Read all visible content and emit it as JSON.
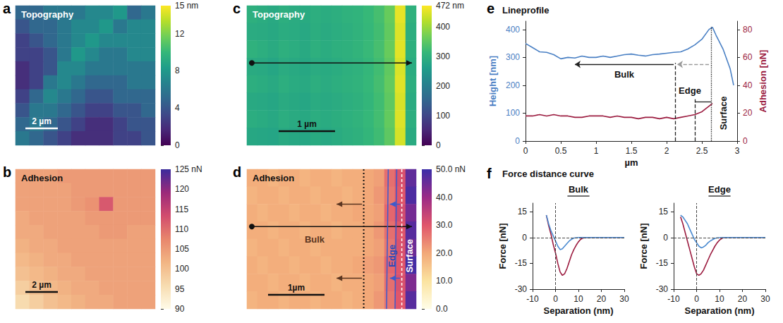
{
  "chart_data": [
    {
      "panel": "a",
      "type": "heatmap",
      "title": "Topography",
      "scale_bar": "2 µm",
      "tick_labels": false,
      "cells": [
        [
          5,
          5,
          6,
          6,
          6,
          7,
          7,
          8,
          5,
          6
        ],
        [
          4,
          5,
          5,
          6,
          7,
          7,
          8,
          6,
          7,
          7
        ],
        [
          3,
          4,
          5,
          6,
          7,
          8,
          7,
          7,
          7,
          7
        ],
        [
          3,
          3,
          4,
          6,
          8,
          7,
          6,
          6,
          7,
          7
        ],
        [
          2,
          3,
          4,
          7,
          7,
          6,
          6,
          6,
          6,
          6
        ],
        [
          2,
          3,
          6,
          7,
          6,
          5,
          5,
          5,
          6,
          6
        ],
        [
          3,
          5,
          7,
          6,
          5,
          4,
          4,
          5,
          5,
          5
        ],
        [
          4,
          6,
          6,
          5,
          4,
          3,
          3,
          4,
          4,
          5
        ],
        [
          5,
          6,
          5,
          4,
          3,
          2,
          2,
          3,
          4,
          4
        ],
        [
          6,
          5,
          4,
          3,
          2,
          2,
          2,
          3,
          3,
          4
        ]
      ],
      "colorbar": {
        "range": [
          0,
          15
        ],
        "ticks": [
          0,
          4,
          8,
          12,
          {
            "value": 15,
            "label": "15 nm"
          }
        ],
        "colors": [
          "#440154",
          "#482878",
          "#3e4989",
          "#31688e",
          "#26828e",
          "#1f9e89",
          "#35b779",
          "#6ece58",
          "#b5de2b",
          "#fde725"
        ]
      }
    },
    {
      "panel": "b",
      "type": "heatmap",
      "title": "Adhesion",
      "scale_bar": "2 µm",
      "tick_labels": false,
      "cells": [
        [
          104,
          104,
          104,
          105,
          105,
          105,
          105,
          105,
          105,
          105
        ],
        [
          104,
          104,
          104,
          104,
          105,
          105,
          105,
          105,
          105,
          105
        ],
        [
          104,
          104,
          104,
          104,
          105,
          106,
          112,
          105,
          105,
          105
        ],
        [
          103,
          104,
          104,
          104,
          104,
          105,
          105,
          105,
          105,
          105
        ],
        [
          103,
          103,
          104,
          104,
          104,
          104,
          105,
          105,
          104,
          104
        ],
        [
          102,
          103,
          103,
          104,
          104,
          104,
          104,
          104,
          104,
          104
        ],
        [
          101,
          102,
          103,
          103,
          104,
          104,
          104,
          104,
          104,
          104
        ],
        [
          100,
          101,
          102,
          103,
          103,
          104,
          104,
          104,
          104,
          104
        ],
        [
          98,
          100,
          101,
          102,
          103,
          103,
          104,
          104,
          104,
          104
        ],
        [
          96,
          98,
          100,
          101,
          102,
          103,
          103,
          104,
          104,
          104
        ]
      ],
      "colorbar": {
        "range": [
          90,
          125
        ],
        "ticks": [
          90,
          95,
          100,
          105,
          110,
          115,
          120,
          {
            "value": 125,
            "label": "125 nN"
          }
        ],
        "colors": [
          "#fffbe8",
          "#f7dcb0",
          "#f2b584",
          "#e8866c",
          "#d24c6e",
          "#9b2a7a",
          "#3b2c9c"
        ]
      }
    },
    {
      "panel": "c",
      "type": "heatmap",
      "title": "Topography",
      "scale_bar": "1 µm",
      "tick_labels": false,
      "cells": [
        [
          298,
          292,
          286,
          296,
          290,
          287,
          296,
          291,
          296,
          302,
          306,
          316,
          330,
          360,
          455,
          300
        ],
        [
          290,
          288,
          284,
          292,
          289,
          283,
          294,
          288,
          293,
          298,
          304,
          314,
          327,
          356,
          448,
          294
        ],
        [
          302,
          295,
          288,
          298,
          293,
          286,
          298,
          292,
          297,
          301,
          307,
          317,
          331,
          361,
          452,
          298
        ],
        [
          288,
          286,
          280,
          290,
          286,
          281,
          290,
          287,
          292,
          297,
          302,
          312,
          326,
          354,
          446,
          292
        ],
        [
          296,
          291,
          285,
          295,
          289,
          285,
          295,
          290,
          295,
          300,
          305,
          315,
          329,
          358,
          451,
          296
        ],
        [
          285,
          283,
          278,
          288,
          284,
          279,
          289,
          285,
          290,
          296,
          301,
          311,
          325,
          353,
          445,
          290
        ],
        [
          293,
          289,
          283,
          293,
          288,
          284,
          293,
          289,
          294,
          299,
          304,
          314,
          328,
          357,
          449,
          295
        ],
        [
          282,
          280,
          276,
          286,
          282,
          278,
          287,
          283,
          289,
          295,
          300,
          310,
          324,
          352,
          443,
          288
        ]
      ],
      "colorbar": {
        "range": [
          0,
          472
        ],
        "ticks": [
          0,
          100,
          200,
          300,
          400,
          {
            "value": 472,
            "label": "472 nm"
          }
        ],
        "colors": [
          "#440154",
          "#482878",
          "#3e4989",
          "#31688e",
          "#26828e",
          "#1f9e89",
          "#35b779",
          "#6ece58",
          "#b5de2b",
          "#fde725"
        ]
      }
    },
    {
      "panel": "d",
      "type": "heatmap",
      "title": "Adhesion",
      "scale_bar": "1µm",
      "tick_labels": false,
      "cells": [
        [
          19,
          19,
          18,
          19,
          19,
          18,
          19,
          19,
          18,
          19,
          19,
          20,
          21,
          27,
          31,
          46
        ],
        [
          18,
          19,
          19,
          18,
          19,
          19,
          18,
          19,
          19,
          18,
          19,
          20,
          22,
          26,
          30,
          48
        ],
        [
          19,
          18,
          19,
          19,
          18,
          19,
          19,
          18,
          19,
          19,
          20,
          20,
          21,
          28,
          32,
          44
        ],
        [
          19,
          19,
          18,
          19,
          19,
          18,
          19,
          19,
          18,
          19,
          19,
          20,
          22,
          27,
          30,
          47
        ],
        [
          18,
          19,
          19,
          18,
          19,
          19,
          18,
          19,
          19,
          19,
          19,
          20,
          21,
          26,
          31,
          45
        ],
        [
          19,
          18,
          19,
          19,
          18,
          19,
          19,
          18,
          19,
          19,
          20,
          21,
          22,
          28,
          30,
          49
        ],
        [
          19,
          19,
          18,
          19,
          19,
          18,
          19,
          19,
          18,
          19,
          19,
          20,
          21,
          27,
          31,
          43
        ],
        [
          18,
          19,
          19,
          18,
          19,
          19,
          18,
          19,
          19,
          18,
          19,
          20,
          22,
          26,
          30,
          47
        ]
      ],
      "colorbar": {
        "range": [
          0,
          50
        ],
        "ticks": [
          {
            "value": 0,
            "label": "0.0"
          },
          {
            "value": 10,
            "label": "10.0"
          },
          {
            "value": 20,
            "label": "20.0"
          },
          {
            "value": 30,
            "label": "30.0"
          },
          {
            "value": 40,
            "label": "40.0"
          },
          {
            "value": 50,
            "label": "50.0 nN"
          }
        ],
        "colors": [
          "#fffde8",
          "#fbe3a0",
          "#f2a878",
          "#e0566b",
          "#9a2a86",
          "#3a2da8"
        ]
      },
      "annotations": [
        {
          "text": "Bulk"
        },
        {
          "text": "Edge",
          "orientation": "vertical"
        },
        {
          "text": "Surface",
          "orientation": "vertical"
        }
      ]
    },
    {
      "panel": "e",
      "type": "line",
      "title": "Lineprofile",
      "x": [
        0,
        0.1,
        0.2,
        0.3,
        0.4,
        0.5,
        0.6,
        0.7,
        0.8,
        0.9,
        1,
        1.1,
        1.2,
        1.3,
        1.4,
        1.5,
        1.6,
        1.7,
        1.8,
        1.9,
        2,
        2.1,
        2.2,
        2.3,
        2.4,
        2.5,
        2.6,
        2.65,
        2.7,
        2.8,
        2.9,
        2.95
      ],
      "xlim": [
        0,
        3
      ],
      "xticks": [
        0,
        0.5,
        1,
        1.5,
        2,
        2.5,
        3
      ],
      "x_label": "µm",
      "ylim": [
        0,
        430
      ],
      "yticks": [
        0,
        100,
        200,
        300,
        400
      ],
      "y_label": "Height [nm]",
      "y2lim": [
        0,
        86
      ],
      "y2ticks": [
        0,
        20,
        40,
        60,
        80
      ],
      "y2_label": "Adhesion [nN]",
      "grid": false,
      "series": [
        {
          "color": "#4a80c4",
          "values": [
            350,
            335,
            320,
            318,
            310,
            295,
            300,
            298,
            305,
            300,
            300,
            305,
            300,
            305,
            310,
            312,
            308,
            305,
            310,
            312,
            315,
            318,
            320,
            330,
            345,
            365,
            400,
            408,
            380,
            330,
            260,
            200
          ]
        },
        {
          "color": "#9b1b3f",
          "axis": "y2",
          "values": [
            18,
            18,
            19,
            18,
            19,
            18,
            18,
            17,
            17,
            18,
            18,
            18,
            17,
            18,
            17,
            17,
            16,
            17,
            17,
            16,
            17,
            16,
            17,
            18,
            19,
            21,
            25,
            27,
            null,
            null,
            null,
            null
          ]
        }
      ],
      "annotations": [
        {
          "text": "Bulk",
          "x": 1.4,
          "y": 240
        },
        {
          "text": "Edge",
          "x": 2.33,
          "y": 180
        },
        {
          "text": "Surface",
          "x": 2.8,
          "y": 100,
          "orientation": "vertical"
        }
      ],
      "lines": [
        {
          "from": [
            2.12,
            0
          ],
          "to": [
            2.12,
            280
          ],
          "line_style": "dashed",
          "marker": "none",
          "color": "#222222"
        },
        {
          "from": [
            2.4,
            0
          ],
          "to": [
            2.4,
            150
          ],
          "line_style": "dashed",
          "marker": "none",
          "color": "#222222"
        },
        {
          "from": [
            2.63,
            0
          ],
          "to": [
            2.63,
            410
          ],
          "line_style": "dotted",
          "marker": "none",
          "color": "#222222"
        },
        {
          "from": [
            2.1,
            275
          ],
          "to": [
            0.7,
            275
          ],
          "line_style": "solid",
          "marker": "arrow",
          "color": "#222222"
        },
        {
          "from": [
            2.6,
            275
          ],
          "to": [
            2.15,
            275
          ],
          "line_style": "dashed",
          "marker": "arrow",
          "color": "#9a9a9a"
        },
        {
          "from": [
            2.4,
            140
          ],
          "to": [
            2.63,
            140
          ],
          "line_style": "solid",
          "marker": "none",
          "color": "#222222"
        }
      ]
    },
    {
      "panel": "f",
      "type": "line",
      "title": "Force distance curve",
      "x_label": "Separation (nm)",
      "y_label": "Force [nN]",
      "xlim": [
        -10,
        30
      ],
      "xticks": [
        -10,
        0,
        10,
        20,
        30
      ],
      "ylim": [
        -30,
        20
      ],
      "yticks": [
        -30,
        -15,
        0,
        15
      ],
      "grid": false,
      "ref_lines": {
        "x": [
          0
        ],
        "y": [
          0
        ]
      },
      "subplots": [
        {
          "title": "Bulk",
          "series": [
            {
              "color": "#9b1b3f",
              "x": [
                -4,
                -3,
                -2,
                -1,
                0,
                1,
                2,
                3,
                4,
                5,
                6,
                7,
                8,
                9,
                10,
                11,
                12,
                14,
                20,
                25,
                30
              ],
              "values": [
                13,
                7,
                2,
                -4,
                -9,
                -15,
                -20,
                -22,
                -21,
                -18,
                -14,
                -10,
                -7,
                -4.5,
                -2.5,
                -1,
                -0.3,
                0,
                0,
                0,
                0
              ]
            },
            {
              "color": "#4a8ad0",
              "x": [
                -4,
                -3,
                -2,
                -1,
                0,
                1,
                2,
                3,
                4,
                5,
                6,
                7,
                8,
                10,
                15,
                20,
                25,
                30
              ],
              "values": [
                13,
                8,
                4,
                1,
                -2,
                -5,
                -7,
                -6.5,
                -5,
                -3.5,
                -2,
                -1,
                -0.3,
                0,
                0,
                0,
                0,
                0
              ]
            }
          ]
        },
        {
          "title": "Edge",
          "series": [
            {
              "color": "#9b1b3f",
              "x": [
                -7,
                -6,
                -5,
                -4,
                -3,
                -2,
                -1,
                0,
                1,
                2,
                3,
                4,
                5,
                6,
                7,
                8,
                9,
                10,
                11,
                12,
                14,
                20,
                30
              ],
              "values": [
                12,
                8,
                3,
                -2,
                -7,
                -12,
                -17,
                -21,
                -22,
                -21,
                -19,
                -16,
                -13,
                -10,
                -7.5,
                -5,
                -3,
                -1.5,
                -0.5,
                0,
                0,
                0,
                0
              ]
            },
            {
              "color": "#4a8ad0",
              "x": [
                -7,
                -6,
                -5,
                -4,
                -3,
                -2,
                -1,
                0,
                1,
                2,
                3,
                4,
                5,
                6,
                7,
                8,
                9,
                12,
                20,
                30
              ],
              "values": [
                13,
                12,
                10,
                8,
                5,
                2,
                -1,
                -3,
                -5,
                -6,
                -5.5,
                -4.5,
                -3,
                -2,
                -1.2,
                -0.5,
                -0.2,
                0,
                0,
                0
              ]
            }
          ]
        }
      ]
    }
  ]
}
